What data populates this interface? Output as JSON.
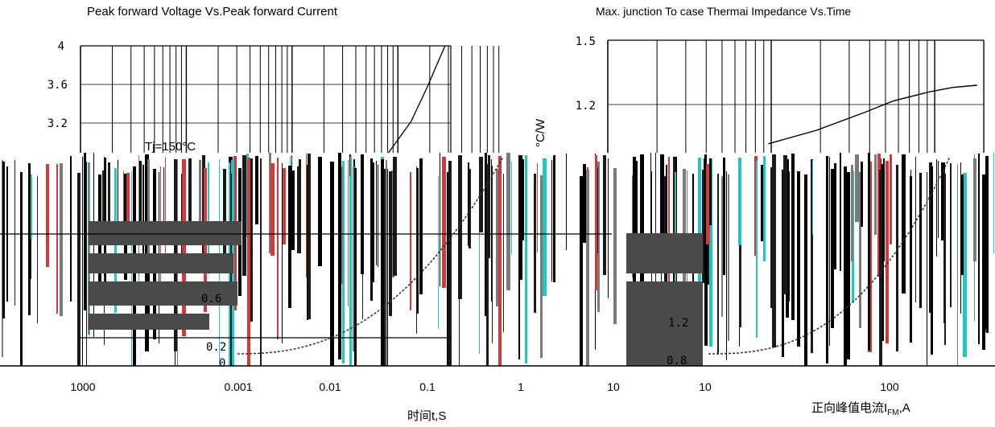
{
  "chart_data": [
    {
      "type": "line",
      "title": "Peak forward Voltage Vs.Peak forward Current",
      "annotation": "Tj=150°C",
      "yticks": [
        "4",
        "3.6",
        "3.2"
      ],
      "ylim": [
        2.8,
        4
      ],
      "series": [
        {
          "x": [
            0.00055,
            0.0009,
            0.0013,
            0.0016,
            0.0019
          ],
          "y": [
            2.8,
            3.15,
            3.55,
            3.8,
            4.0
          ]
        }
      ]
    },
    {
      "type": "line",
      "title": "Max. junction To case Thermai Impedance Vs.Time",
      "ylabel": "°C/W",
      "yticks": [
        "1.5",
        "1.2"
      ],
      "ylim": [
        1.0,
        1.5
      ],
      "series": [
        {
          "x": [
            0.5,
            1,
            2,
            3,
            5,
            7,
            10
          ],
          "y": [
            1.04,
            1.1,
            1.18,
            1.23,
            1.27,
            1.29,
            1.3
          ]
        }
      ]
    },
    {
      "type": "line",
      "xlabel": "时间t,S",
      "xtick_labels": [
        "1000",
        "0.001",
        "0.01",
        "0.1",
        "1",
        "10"
      ],
      "ytick_labels": [
        "0.6",
        "0.2",
        "0"
      ]
    },
    {
      "type": "line",
      "xlabel": "正向峰值电流I",
      "xlabel_sub": "FM",
      "xlabel_suffix": ",A",
      "xtick_labels": [
        "10",
        "100"
      ],
      "ytick_labels": [
        "1.2",
        "0.8"
      ]
    }
  ]
}
